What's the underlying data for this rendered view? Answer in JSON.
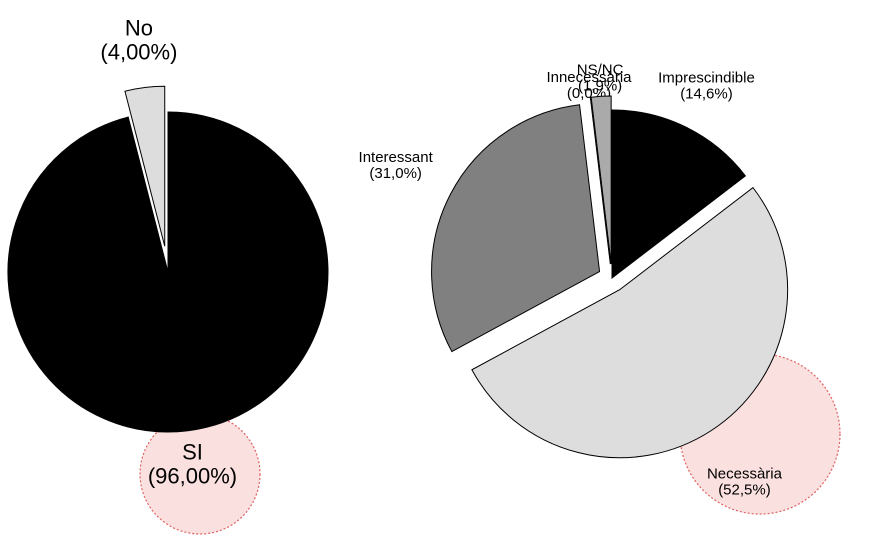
{
  "chart_data": [
    {
      "type": "pie",
      "categories": [
        "SI",
        "No"
      ],
      "values": [
        96,
        4
      ],
      "value_labels": [
        "(96,00%)",
        "(4,00%)"
      ],
      "colors": [
        "#000000",
        "#dddddd"
      ],
      "exploded": [
        false,
        true
      ]
    },
    {
      "type": "pie",
      "categories": [
        "Imprescindible",
        "Necessària",
        "Interessant",
        "Innecessària",
        "NS/NC"
      ],
      "values": [
        14.6,
        52.5,
        31.0,
        0.0,
        1.9
      ],
      "value_labels": [
        "(14,6%)",
        "(52,5%)",
        "(31,0%)",
        "(0,0%)",
        "(1,9%)"
      ],
      "colors": [
        "#000000",
        "#dddddd",
        "#808080",
        "#ffffff",
        "#aaaaaa"
      ],
      "exploded": [
        false,
        true,
        true,
        true,
        true
      ]
    }
  ]
}
